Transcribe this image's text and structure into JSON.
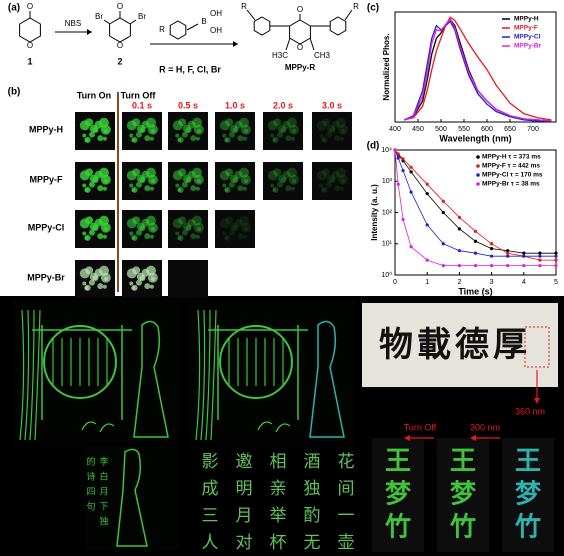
{
  "panel_a": {
    "label": "(a)",
    "reagent": "NBS",
    "compound_1": "1",
    "compound_2": "2",
    "substituents": "R = H, F, Cl, Br",
    "product": "MPPy-R",
    "atoms": [
      "O",
      "O",
      "Br",
      "Br",
      "O",
      "O",
      "R",
      "B",
      "OH",
      "OH",
      "O",
      "O",
      "R",
      "R",
      "H3C",
      "CH3"
    ]
  },
  "panel_b": {
    "label": "(b)",
    "turn_on": "Turn On",
    "turn_off": "Turn Off",
    "times": [
      "0.1 s",
      "0.5 s",
      "1.0 s",
      "2.0 s",
      "3.0 s"
    ],
    "rows": [
      "MPPy-H",
      "MPPy-F",
      "MPPy-Cl",
      "MPPy-Br"
    ]
  },
  "chart_data": [
    {
      "type": "line",
      "label": "(c)",
      "x_label": "Wavelength (nm)",
      "y_label": "Normalized Phos.",
      "x": [
        420,
        440,
        460,
        470,
        480,
        490,
        500,
        510,
        520,
        530,
        540,
        560,
        580,
        600,
        620,
        650,
        680,
        710,
        740
      ],
      "series": [
        {
          "name": "MPPy-H",
          "color": "#000000",
          "values": [
            0.02,
            0.05,
            0.2,
            0.4,
            0.65,
            0.8,
            0.85,
            0.93,
            0.98,
            0.92,
            0.78,
            0.5,
            0.3,
            0.2,
            0.12,
            0.06,
            0.03,
            0.02,
            0.01
          ]
        },
        {
          "name": "MPPy-F",
          "color": "#e41a1c",
          "values": [
            0.02,
            0.04,
            0.15,
            0.3,
            0.5,
            0.68,
            0.8,
            0.92,
            1.0,
            0.97,
            0.9,
            0.75,
            0.62,
            0.5,
            0.35,
            0.18,
            0.08,
            0.04,
            0.02
          ]
        },
        {
          "name": "MPPy-Cl",
          "color": "#1f1fd0",
          "values": [
            0.02,
            0.06,
            0.3,
            0.55,
            0.8,
            0.92,
            0.88,
            0.92,
            0.96,
            0.88,
            0.72,
            0.45,
            0.27,
            0.17,
            0.1,
            0.05,
            0.02,
            0.01,
            0.01
          ]
        },
        {
          "name": "MPPy-Br",
          "color": "#e020e0",
          "values": [
            0.02,
            0.05,
            0.25,
            0.48,
            0.75,
            0.88,
            0.87,
            0.93,
            0.98,
            0.9,
            0.75,
            0.48,
            0.3,
            0.2,
            0.12,
            0.06,
            0.03,
            0.02,
            0.01
          ]
        }
      ],
      "xlim": [
        400,
        750
      ],
      "xticks": [
        400,
        450,
        500,
        550,
        600,
        650,
        700
      ],
      "ylim": [
        0,
        1.05
      ],
      "legend": "upper right"
    },
    {
      "type": "line",
      "label": "(d)",
      "x_label": "Time (s)",
      "y_label": "Intensity (a. u.)",
      "log_y": true,
      "markers": true,
      "x": [
        0,
        0.1,
        0.25,
        0.5,
        1,
        1.5,
        2,
        2.5,
        3,
        3.5,
        4,
        4.5,
        5
      ],
      "series": [
        {
          "name": "MPPy-H  τ = 373 ms",
          "color": "#000000",
          "values": [
            10000,
            7000,
            4500,
            2000,
            400,
            100,
            30,
            12,
            7,
            6,
            5,
            5,
            5
          ]
        },
        {
          "name": "MPPy-F  τ = 442 ms",
          "color": "#e41a1c",
          "values": [
            10000,
            7500,
            5200,
            2800,
            800,
            230,
            70,
            25,
            10,
            5,
            4,
            3,
            3
          ]
        },
        {
          "name": "MPPy-Cl  τ = 170 ms",
          "color": "#1f1fd0",
          "values": [
            10000,
            5500,
            2200,
            450,
            40,
            10,
            6,
            5,
            4,
            4,
            4,
            4,
            4
          ]
        },
        {
          "name": "MPPy-Br  τ = 38 ms",
          "color": "#e020e0",
          "values": [
            10000,
            800,
            60,
            8,
            3,
            2,
            2,
            2,
            2,
            2,
            2,
            2,
            2
          ]
        }
      ],
      "xlim": [
        0,
        5
      ],
      "xticks": [
        0,
        1,
        2,
        3,
        4,
        5
      ],
      "ylim": [
        1,
        10000
      ],
      "yticks": [
        {
          "value": 1,
          "label": "10⁰"
        },
        {
          "value": 10,
          "label": "10¹"
        },
        {
          "value": 100,
          "label": "10²"
        },
        {
          "value": 1000,
          "label": "10³"
        },
        {
          "value": 10000,
          "label": "10⁴"
        }
      ],
      "legend": "upper right"
    }
  ],
  "photos": {
    "poem_columns": [
      "花间一壶",
      "酒独酌无",
      "相亲举杯",
      "邀明月对",
      "影成三人"
    ],
    "note_columns": [
      "李白月下独",
      "的诗四句"
    ],
    "calligraphy": "物載德厚",
    "strip_text": "王梦竹",
    "turn_off": "Turn Off",
    "uv_300": "300 nm",
    "uv_360": "360 nm"
  }
}
